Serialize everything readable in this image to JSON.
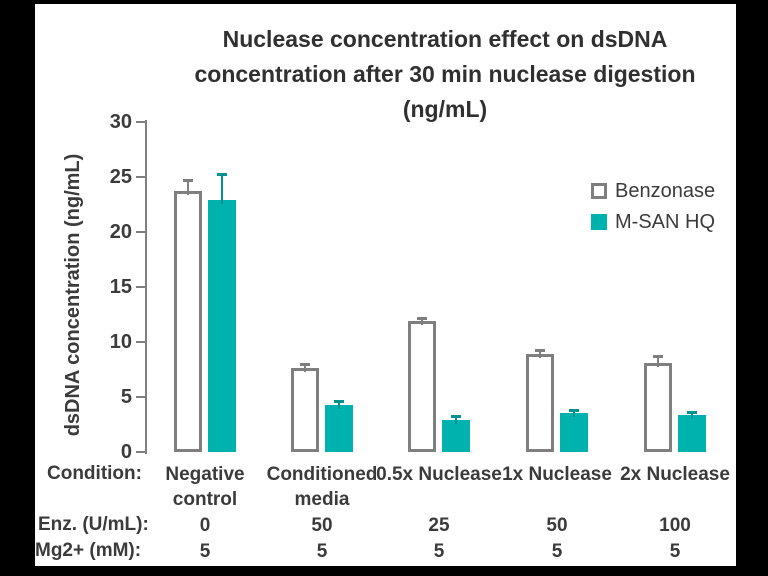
{
  "title": {
    "line1": "Nuclease concentration effect on dsDNA",
    "line2": "concentration after 30 min nuclease digestion",
    "line3": "(ng/mL)"
  },
  "chart_data": {
    "type": "bar",
    "title": "Nuclease concentration effect on dsDNA concentration after 30 min nuclease digestion (ng/mL)",
    "xlabel": "",
    "ylabel": "dsDNA concentration (ng/mL)",
    "ylim": [
      0,
      30
    ],
    "y_ticks": [
      0,
      5,
      10,
      15,
      20,
      25,
      30
    ],
    "grid": false,
    "legend_position": "upper-right",
    "categories": [
      "Negative control",
      "Conditioned media",
      "0.5x Nuclease",
      "1x Nuclease",
      "2x Nuclease"
    ],
    "series": [
      {
        "name": "Benzonase",
        "values": [
          23.7,
          7.6,
          11.9,
          8.9,
          8.1
        ],
        "errors_plus": [
          0.9,
          0.3,
          0.2,
          0.3,
          0.5
        ],
        "fill": "#ffffff",
        "stroke": "#7f7f7f",
        "error_color": "#7f7f7f"
      },
      {
        "name": "M-SAN HQ",
        "values": [
          22.9,
          4.3,
          2.9,
          3.5,
          3.4
        ],
        "errors_plus": [
          2.3,
          0.3,
          0.3,
          0.2,
          0.2
        ],
        "fill": "#00b2ae",
        "stroke": "#00b2ae",
        "error_color": "#00938f"
      }
    ]
  },
  "legend": {
    "items": [
      {
        "label": "Benzonase",
        "fill": "#ffffff",
        "stroke": "#7f7f7f"
      },
      {
        "label": "M-SAN HQ",
        "fill": "#00b2ae",
        "stroke": "#00b2ae"
      }
    ]
  },
  "table": {
    "rows": [
      {
        "label": "Condition:",
        "values": [
          "Negative control",
          "Conditioned media",
          "0.5x Nuclease",
          "1x Nuclease",
          "2x Nuclease"
        ]
      },
      {
        "label": "Enz. (U/mL):",
        "values": [
          "0",
          "50",
          "25",
          "50",
          "100"
        ]
      },
      {
        "label": "Mg2+ (mM):",
        "values": [
          "5",
          "5",
          "5",
          "5",
          "5"
        ]
      }
    ]
  },
  "colors": {
    "teal": "#00b2ae",
    "bar_outline_gray": "#7f7f7f",
    "text_dark": "#3b3b3b",
    "frame_black": "#000000",
    "background_white": "#ffffff"
  }
}
